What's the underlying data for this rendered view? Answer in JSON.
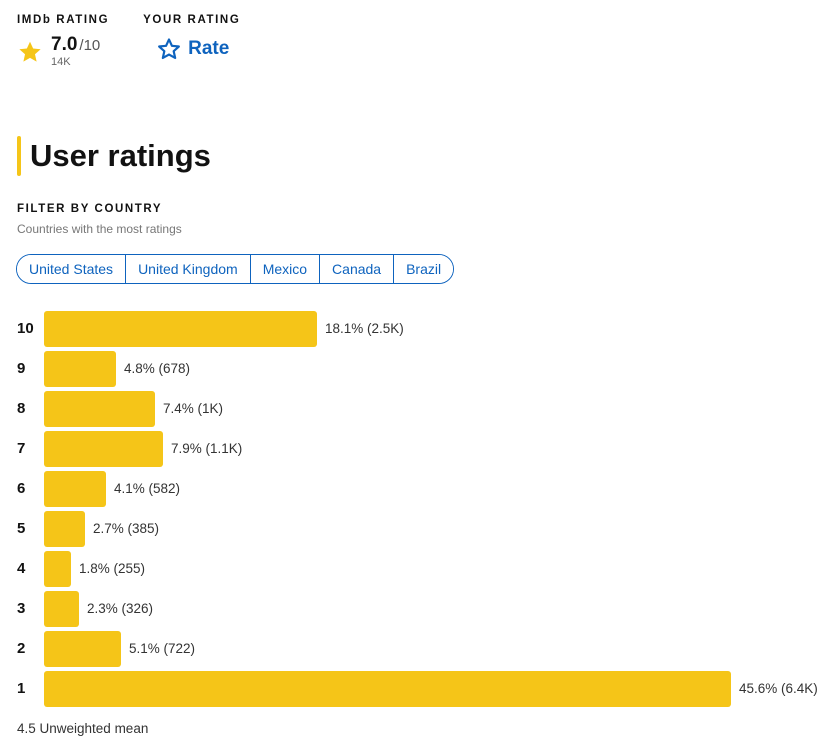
{
  "header": {
    "imdb_rating_label": "IMDb RATING",
    "your_rating_label": "YOUR RATING",
    "score": "7.0",
    "score_max": "/10",
    "vote_count": "14K",
    "rate_label": "Rate",
    "star_icon": "star-filled",
    "rate_icon": "star-outline"
  },
  "section": {
    "title": "User ratings"
  },
  "filter": {
    "label": "FILTER BY COUNTRY",
    "subtitle": "Countries with the most ratings",
    "countries": [
      "United States",
      "United Kingdom",
      "Mexico",
      "Canada",
      "Brazil"
    ]
  },
  "colors": {
    "accent": "#f5c518",
    "link": "#0e63be"
  },
  "chart_data": {
    "type": "bar",
    "orientation": "horizontal",
    "categories": [
      "10",
      "9",
      "8",
      "7",
      "6",
      "5",
      "4",
      "3",
      "2",
      "1"
    ],
    "values": [
      18.1,
      4.8,
      7.4,
      7.9,
      4.1,
      2.7,
      1.8,
      2.3,
      5.1,
      45.6
    ],
    "labels": [
      "18.1% (2.5K)",
      "4.8% (678)",
      "7.4% (1K)",
      "7.9% (1.1K)",
      "4.1% (582)",
      "2.7% (385)",
      "1.8% (255)",
      "2.3% (326)",
      "5.1% (722)",
      "45.6% (6.4K)"
    ],
    "xlim": [
      0,
      45.6
    ],
    "grid": false
  },
  "footer": {
    "mean_text": "4.5 Unweighted mean"
  }
}
